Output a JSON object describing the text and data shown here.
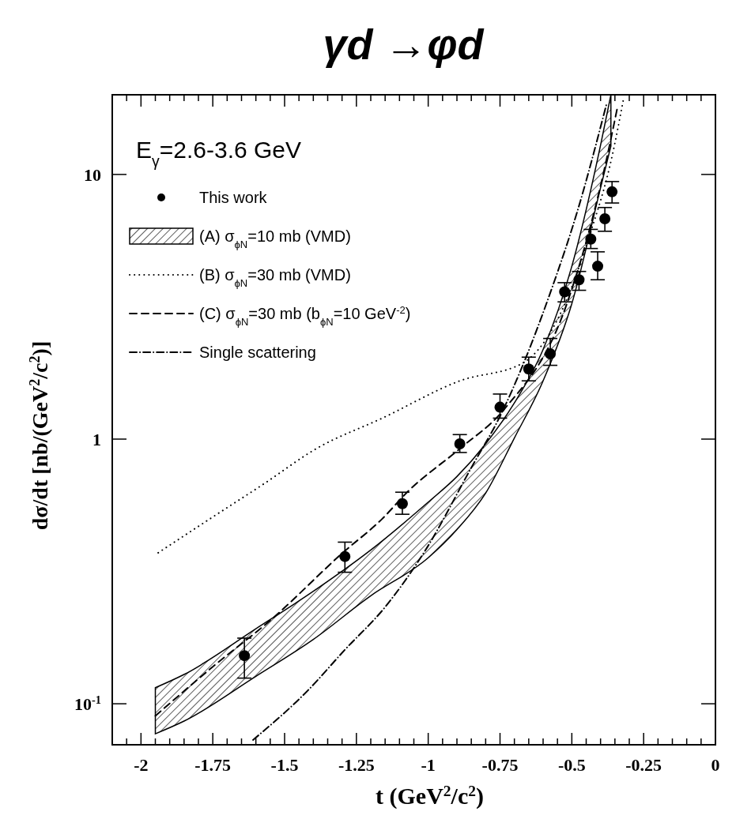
{
  "chart_data": {
    "type": "scatter",
    "title": "γd →φd",
    "xlabel": "t (GeV$^{2}$/c$^{2}$)",
    "ylabel": "dσ/dt [nb/(GeV$^{2}$/c$^{2}$)]",
    "annotations": [
      "E$_{γ}$=2.6-3.6 GeV"
    ],
    "log": "y",
    "legend": "top left",
    "grid": false,
    "xlim": [
      -2.1,
      0
    ],
    "ylim": [
      0.07,
      20
    ],
    "xticks": [
      -2,
      -1.75,
      -1.5,
      -1.25,
      -1,
      -0.75,
      -0.5,
      -0.25,
      0,
      {
        "value": -2.05,
        "label": null
      },
      {
        "value": -1.95,
        "label": null
      },
      {
        "value": -1.9,
        "label": null
      },
      {
        "value": -1.85,
        "label": null
      },
      {
        "value": -1.8,
        "label": null
      },
      {
        "value": -1.7,
        "label": null
      },
      {
        "value": -1.65,
        "label": null
      },
      {
        "value": -1.6,
        "label": null
      },
      {
        "value": -1.55,
        "label": null
      },
      {
        "value": -1.45,
        "label": null
      },
      {
        "value": -1.4,
        "label": null
      },
      {
        "value": -1.35,
        "label": null
      },
      {
        "value": -1.3,
        "label": null
      },
      {
        "value": -1.2,
        "label": null
      },
      {
        "value": -1.15,
        "label": null
      },
      {
        "value": -1.1,
        "label": null
      },
      {
        "value": -1.05,
        "label": null
      },
      {
        "value": -0.95,
        "label": null
      },
      {
        "value": -0.9,
        "label": null
      },
      {
        "value": -0.85,
        "label": null
      },
      {
        "value": -0.8,
        "label": null
      },
      {
        "value": -0.7,
        "label": null
      },
      {
        "value": -0.65,
        "label": null
      },
      {
        "value": -0.6,
        "label": null
      },
      {
        "value": -0.55,
        "label": null
      },
      {
        "value": -0.45,
        "label": null
      },
      {
        "value": -0.4,
        "label": null
      },
      {
        "value": -0.35,
        "label": null
      },
      {
        "value": -0.3,
        "label": null
      },
      {
        "value": -0.2,
        "label": null
      },
      {
        "value": -0.15,
        "label": null
      },
      {
        "value": -0.1,
        "label": null
      },
      {
        "value": -0.05,
        "label": null
      }
    ],
    "yticks": [
      {
        "value": 0.1,
        "label": "10$^{-1}$"
      },
      1,
      10
    ],
    "series": [
      {
        "name": "This work",
        "marker": "circle",
        "color": "#000000",
        "x": [
          -1.64,
          -1.29,
          -1.09,
          -0.89,
          -0.75,
          -0.65,
          -0.575,
          -0.525,
          -0.475,
          -0.434,
          -0.41,
          -0.385,
          -0.36
        ],
        "values": [
          0.152,
          0.36,
          0.57,
          0.96,
          1.32,
          1.84,
          2.1,
          3.6,
          4.0,
          5.7,
          4.5,
          6.8,
          8.6
        ],
        "errors": [
          [
            0.125,
            0.177
          ],
          [
            0.314,
            0.408
          ],
          [
            0.52,
            0.63
          ],
          [
            0.89,
            1.04
          ],
          [
            1.2,
            1.48
          ],
          [
            1.66,
            2.04
          ],
          [
            1.9,
            2.4
          ],
          [
            3.3,
            3.9
          ],
          [
            3.65,
            4.3
          ],
          [
            5.25,
            6.2
          ],
          [
            4.0,
            5.1
          ],
          [
            6.1,
            7.5
          ],
          [
            7.8,
            9.4
          ]
        ]
      },
      {
        "name": "(A) σ$_{ϕN}$=10 mb (VMD)",
        "type": "area",
        "color": "#000000",
        "x": [
          -1.95,
          -1.85,
          -1.6,
          -1.4,
          -1.2,
          -1.0,
          -0.9,
          -0.8,
          -0.7,
          -0.6,
          -0.5,
          -0.4,
          -0.364
        ],
        "values": [
          null,
          null,
          null,
          null,
          null,
          null,
          null,
          null,
          null,
          null,
          null,
          null,
          null
        ],
        "lower": [
          0.077,
          0.086,
          0.127,
          0.175,
          0.256,
          0.356,
          0.455,
          0.625,
          1.01,
          1.66,
          3.25,
          8.9,
          12.8
        ],
        "upper": [
          0.115,
          0.129,
          0.192,
          0.266,
          0.381,
          0.578,
          0.722,
          0.96,
          1.37,
          2.18,
          4.5,
          12.9,
          20
        ]
      },
      {
        "name": "(B) σ$_{ϕN}$=30 mb (VMD)",
        "type": "line",
        "line_style": "dotted",
        "color": "#000000",
        "x": [
          -1.94,
          -1.75,
          -1.57,
          -1.39,
          -1.16,
          -0.89,
          -0.67,
          -0.53,
          -0.44,
          -0.36,
          -0.32
        ],
        "values": [
          0.372,
          0.508,
          0.68,
          0.92,
          1.2,
          1.66,
          1.94,
          3.14,
          5.8,
          11.7,
          19.3
        ]
      },
      {
        "name": "(C) σ$_{ϕN}$=30 mb (b$_{ϕN}$=10 GeV$^{-2}$)",
        "type": "line",
        "line_style": "dashed",
        "color": "#000000",
        "x": [
          -1.95,
          -1.75,
          -1.54,
          -1.3,
          -1.16,
          -1.07,
          -0.89,
          -0.74,
          -0.515,
          -0.39,
          -0.34
        ],
        "values": [
          0.09,
          0.138,
          0.211,
          0.37,
          0.5,
          0.635,
          0.92,
          1.28,
          3.3,
          10.1,
          18.2
        ]
      },
      {
        "name": "Single scattering",
        "type": "line",
        "line_style": "dashdot",
        "color": "#000000",
        "x": [
          -1.61,
          -1.42,
          -1.29,
          -1.15,
          -1.01,
          -0.85,
          -0.75,
          -0.57,
          -0.48,
          -0.38
        ],
        "values": [
          0.073,
          0.112,
          0.16,
          0.232,
          0.38,
          0.78,
          1.22,
          3.7,
          7.3,
          18.3
        ]
      }
    ]
  }
}
